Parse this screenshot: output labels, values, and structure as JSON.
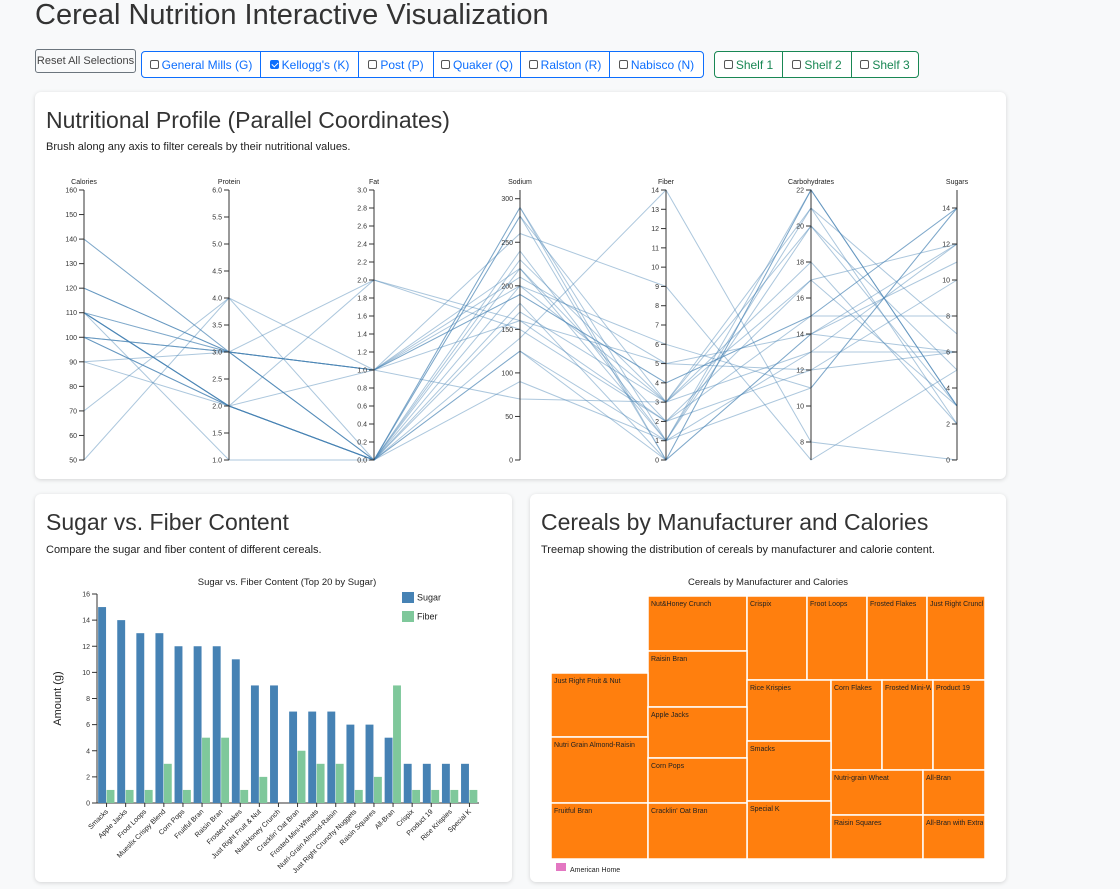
{
  "page": {
    "title": "Cereal Nutrition Interactive Visualization"
  },
  "controls": {
    "reset_label": "Reset All Selections",
    "manufacturers": [
      {
        "label": "General Mills (G)",
        "checked": false
      },
      {
        "label": "Kellogg's (K)",
        "checked": true
      },
      {
        "label": "Post (P)",
        "checked": false
      },
      {
        "label": "Quaker (Q)",
        "checked": false
      },
      {
        "label": "Ralston (R)",
        "checked": false
      },
      {
        "label": "Nabisco (N)",
        "checked": false
      }
    ],
    "shelves": [
      {
        "label": "Shelf 1",
        "checked": false
      },
      {
        "label": "Shelf 2",
        "checked": false
      },
      {
        "label": "Shelf 3",
        "checked": false
      }
    ]
  },
  "parallel": {
    "heading": "Nutritional Profile (Parallel Coordinates)",
    "description": "Brush along any axis to filter cereals by their nutritional values."
  },
  "sugar_fiber": {
    "heading": "Sugar vs. Fiber Content",
    "description": "Compare the sugar and fiber content of different cereals."
  },
  "treemap": {
    "heading": "Cereals by Manufacturer and Calories",
    "description": "Treemap showing the distribution of cereals by manufacturer and calorie content."
  },
  "colors": {
    "line": "#4682b4",
    "sugar": "#4682b4",
    "fiber": "#7fc89b",
    "treemap": "#ff7f0e",
    "legend_other": "#e377c2"
  },
  "chart_data": [
    {
      "type": "line",
      "name": "parallel-coordinates",
      "axes": [
        {
          "label": "Calories",
          "domain": [
            50,
            160
          ],
          "ticks": [
            50,
            60,
            70,
            80,
            90,
            100,
            110,
            120,
            130,
            140,
            150,
            160
          ]
        },
        {
          "label": "Protein",
          "domain": [
            1,
            6
          ],
          "ticks": [
            1.0,
            1.5,
            2.0,
            2.5,
            3.0,
            3.5,
            4.0,
            4.5,
            5.0,
            5.5,
            6.0
          ]
        },
        {
          "label": "Fat",
          "domain": [
            0,
            3
          ],
          "ticks": [
            0.0,
            0.2,
            0.4,
            0.6,
            0.8,
            1.0,
            1.2,
            1.4,
            1.6,
            1.8,
            2.0,
            2.2,
            2.4,
            2.6,
            2.8,
            3.0
          ]
        },
        {
          "label": "Sodium",
          "domain": [
            0,
            310
          ],
          "ticks": [
            0,
            50,
            100,
            150,
            200,
            250,
            300
          ]
        },
        {
          "label": "Fiber",
          "domain": [
            0,
            14
          ],
          "ticks": [
            0,
            1,
            2,
            3,
            4,
            5,
            6,
            7,
            8,
            9,
            10,
            11,
            12,
            13,
            14
          ]
        },
        {
          "label": "Carbohydrates",
          "domain": [
            7,
            22
          ],
          "ticks": [
            8,
            10,
            12,
            14,
            16,
            18,
            20,
            22
          ]
        },
        {
          "label": "Sugars",
          "domain": [
            0,
            15
          ],
          "ticks": [
            0,
            2,
            4,
            6,
            8,
            10,
            12,
            14
          ]
        }
      ],
      "lines": [
        [
          70,
          4,
          1,
          260,
          9,
          7,
          5
        ],
        [
          110,
          2,
          0,
          125,
          1,
          11,
          14
        ],
        [
          110,
          2,
          0,
          290,
          1,
          22,
          3
        ],
        [
          110,
          2,
          0,
          90,
          1,
          13,
          12
        ],
        [
          140,
          3,
          1,
          190,
          4,
          15,
          14
        ],
        [
          100,
          3,
          0,
          200,
          3,
          17,
          3
        ],
        [
          110,
          1,
          0,
          180,
          0,
          14,
          11
        ],
        [
          110,
          2,
          0,
          280,
          0,
          22,
          3
        ],
        [
          100,
          2,
          0,
          280,
          3,
          20,
          5
        ],
        [
          110,
          2,
          0,
          220,
          1,
          21,
          2
        ],
        [
          100,
          2,
          1,
          70,
          3,
          13,
          6
        ],
        [
          90,
          3,
          0,
          170,
          3,
          18,
          2
        ],
        [
          120,
          3,
          1,
          200,
          6,
          11,
          14
        ],
        [
          100,
          3,
          1,
          220,
          2,
          17,
          12
        ],
        [
          110,
          3,
          0,
          240,
          1,
          20,
          3
        ],
        [
          120,
          3,
          1,
          210,
          5,
          14,
          12
        ],
        [
          140,
          3,
          1,
          190,
          4,
          15,
          14
        ],
        [
          90,
          2,
          0,
          125,
          0,
          14,
          6
        ],
        [
          110,
          3,
          0,
          230,
          3,
          21,
          7
        ],
        [
          100,
          3,
          1,
          160,
          2,
          15,
          8
        ],
        [
          110,
          2,
          0,
          290,
          0,
          22,
          3
        ],
        [
          50,
          4,
          0,
          140,
          14,
          8,
          0
        ],
        [
          100,
          2,
          2,
          150,
          2,
          12,
          6
        ],
        [
          120,
          3,
          2,
          160,
          5,
          12,
          10
        ]
      ]
    },
    {
      "type": "bar",
      "name": "sugar-vs-fiber",
      "title": "Sugar vs. Fiber Content (Top 20 by Sugar)",
      "ylabel": "Amount (g)",
      "ylim": [
        0,
        16
      ],
      "yticks": [
        0,
        2,
        4,
        6,
        8,
        10,
        12,
        14,
        16
      ],
      "categories": [
        "Smacks",
        "Apple Jacks",
        "Froot Loops",
        "Mueslix Crispy Blend",
        "Corn Pops",
        "Fruitful Bran",
        "Raisin Bran",
        "Frosted Flakes",
        "Just Right Fruit & Nut",
        "Nut&Honey Crunch",
        "Cracklin' Oat Bran",
        "Frosted Mini-Wheats",
        "Nutri-Grain Almond-Raisin",
        "Just Right Crunchy Nuggets",
        "Raisin Squares",
        "All-Bran",
        "Crispix",
        "Product 19",
        "Rice Krispies",
        "Special K"
      ],
      "series": [
        {
          "name": "Sugar",
          "values": [
            15,
            14,
            13,
            13,
            12,
            12,
            12,
            11,
            9,
            9,
            7,
            7,
            7,
            6,
            6,
            5,
            3,
            3,
            3,
            3
          ]
        },
        {
          "name": "Fiber",
          "values": [
            1,
            1,
            1,
            3,
            1,
            5,
            5,
            1,
            2,
            0,
            4,
            3,
            3,
            1,
            2,
            9,
            1,
            1,
            1,
            1
          ]
        }
      ],
      "legend": [
        "Sugar",
        "Fiber"
      ]
    },
    {
      "type": "treemap",
      "name": "manufacturer-calories",
      "title": "Cereals by Manufacturer and Calories",
      "legend": [
        "American Home"
      ],
      "items": [
        {
          "label": "Nut&Honey Crunch"
        },
        {
          "label": "Crispix"
        },
        {
          "label": "Froot Loops"
        },
        {
          "label": "Frosted Flakes"
        },
        {
          "label": "Just Right Crunchy N"
        },
        {
          "label": "Raisin Bran"
        },
        {
          "label": "Just Right Fruit & Nut"
        },
        {
          "label": "Rice Krispies"
        },
        {
          "label": "Corn Flakes"
        },
        {
          "label": "Frosted Mini-Wheats"
        },
        {
          "label": "Product 19"
        },
        {
          "label": "Apple Jacks"
        },
        {
          "label": "Nutri Grain Almond-Raisin"
        },
        {
          "label": "Smacks"
        },
        {
          "label": "Corn Pops"
        },
        {
          "label": "Nutri-grain Wheat"
        },
        {
          "label": "All-Bran"
        },
        {
          "label": "Fruitful Bran"
        },
        {
          "label": "Special K"
        },
        {
          "label": "Cracklin' Oat Bran"
        },
        {
          "label": "Raisin Squares"
        },
        {
          "label": "All-Bran with Extra Fiber"
        }
      ]
    }
  ]
}
